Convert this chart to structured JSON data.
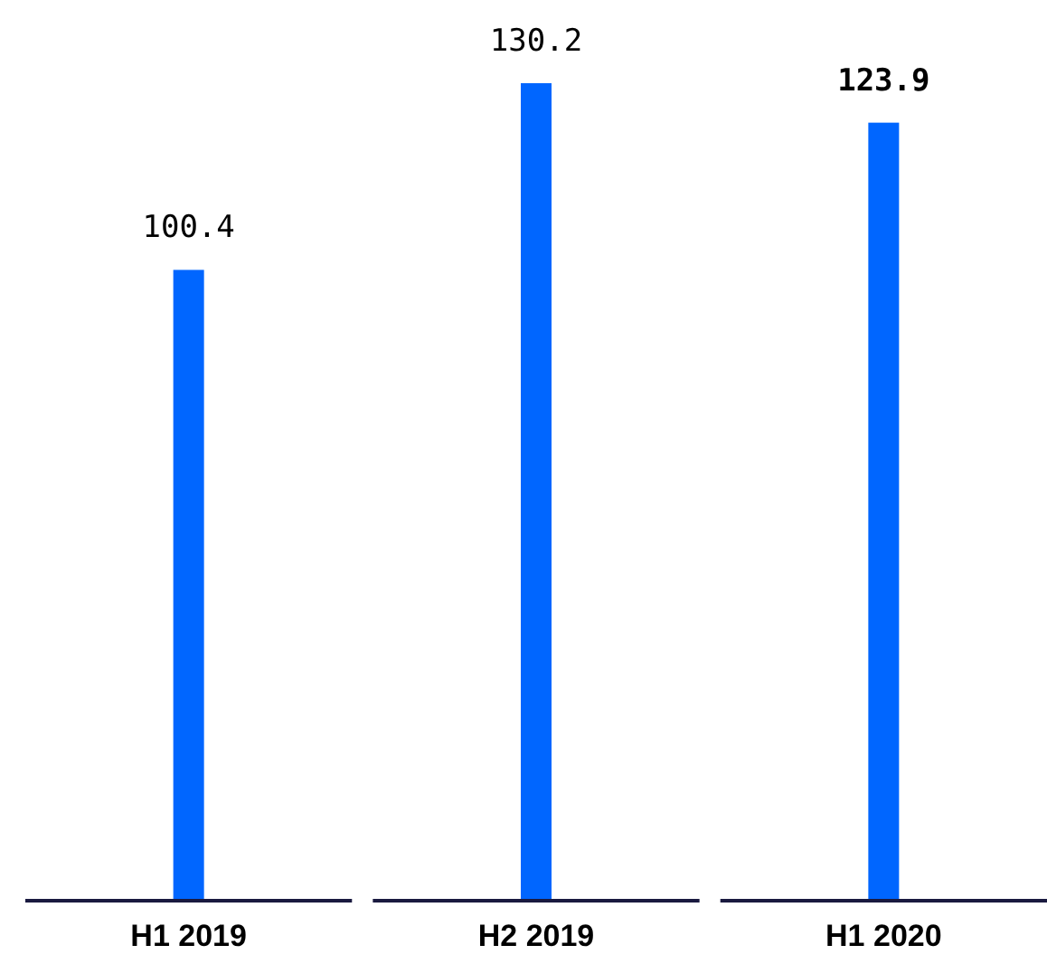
{
  "chart_data": {
    "type": "bar",
    "categories": [
      "H1 2019",
      "H2 2019",
      "H1 2020"
    ],
    "values": [
      100.4,
      130.2,
      123.9
    ],
    "color": "#0066ff",
    "data_labels": true
  }
}
